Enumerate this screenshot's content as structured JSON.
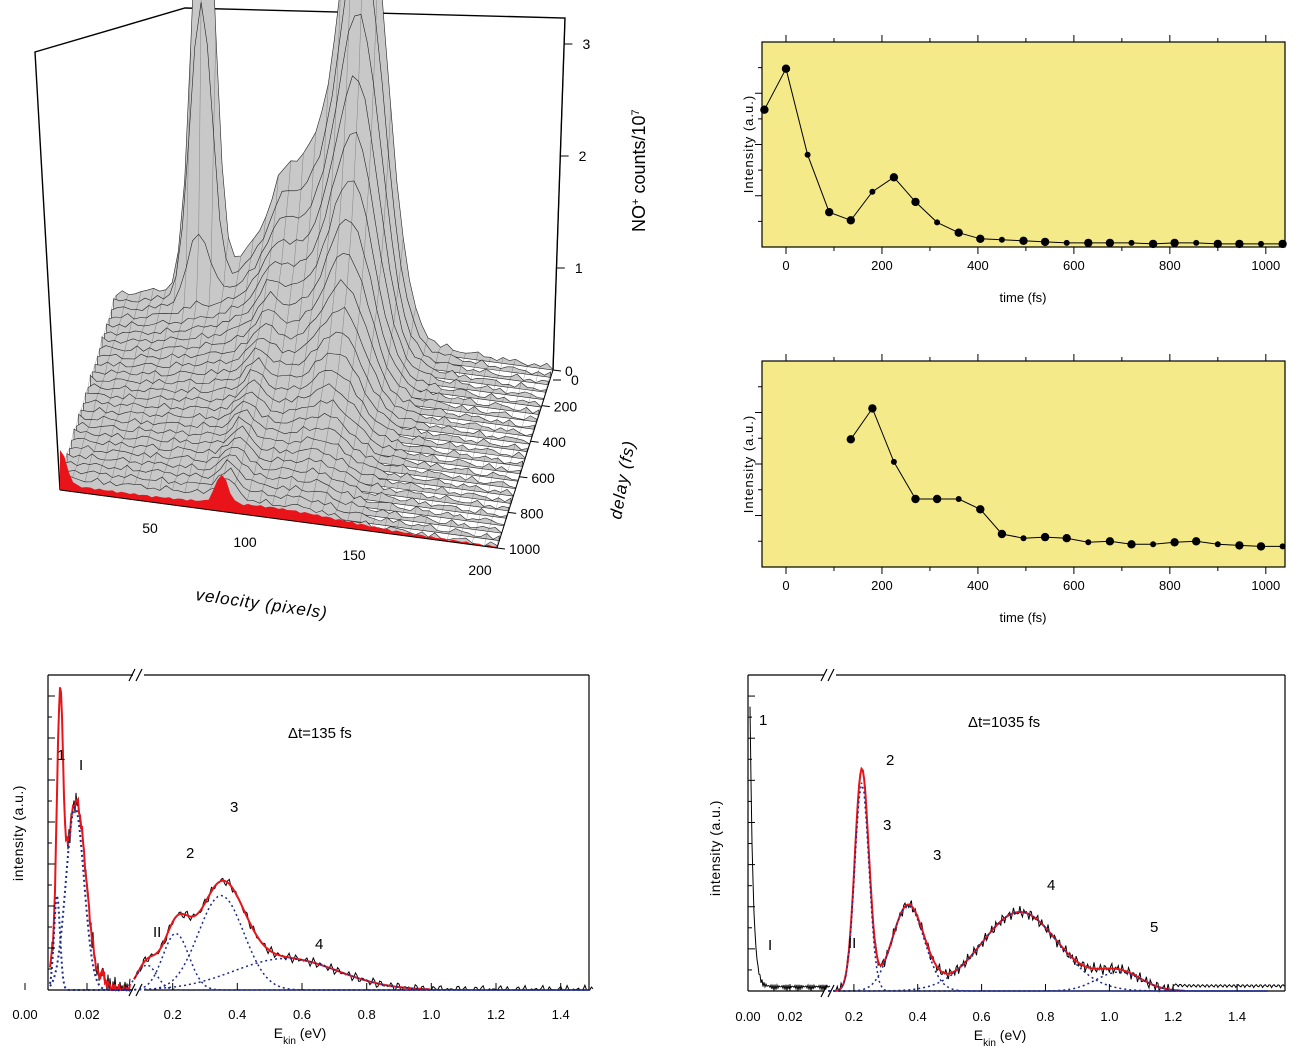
{
  "chart_data": [
    {
      "id": "surface-3d",
      "type": "surface",
      "xlabel": "velocity (pixels)",
      "ylabel": "delay (fs)",
      "zlabel_main": "NO",
      "zlabel_sup": "+",
      "zlabel_rest": " counts/10",
      "zlabel_exp": "7",
      "x_ticks": [
        "50",
        "100",
        "150",
        "200"
      ],
      "y_ticks": [
        "0",
        "200",
        "400",
        "600",
        "800",
        "1000"
      ],
      "z_ticks": [
        "0",
        "1",
        "2",
        "3"
      ],
      "colors": {
        "surface": "#c8c8c8",
        "mesh": "#222222",
        "slice": "#e8141a"
      }
    },
    {
      "id": "top-right",
      "type": "line",
      "xlabel": "time (fs)",
      "ylabel": "Intensity (a.u.)",
      "xlim": [
        -50,
        1040
      ],
      "ylim": [
        0,
        1.0
      ],
      "x_ticks": [
        0,
        200,
        400,
        600,
        800,
        1000
      ],
      "background": "#f5ea8a",
      "series": [
        {
          "x": [
            -45,
            0,
            45,
            90,
            135,
            180,
            225,
            270,
            315,
            360,
            405,
            450,
            495,
            540,
            585,
            630,
            675,
            720,
            765,
            810,
            855,
            900,
            945,
            990,
            1035
          ],
          "y": [
            0.67,
            0.87,
            0.45,
            0.17,
            0.13,
            0.27,
            0.34,
            0.22,
            0.12,
            0.07,
            0.04,
            0.035,
            0.03,
            0.025,
            0.02,
            0.02,
            0.02,
            0.02,
            0.015,
            0.02,
            0.02,
            0.015,
            0.015,
            0.015,
            0.015
          ]
        }
      ]
    },
    {
      "id": "middle-right",
      "type": "line",
      "xlabel": "time (fs)",
      "ylabel": "Intensity (a.u.)",
      "xlim": [
        -50,
        1040
      ],
      "ylim": [
        0,
        1.0
      ],
      "x_ticks": [
        0,
        200,
        400,
        600,
        800,
        1000
      ],
      "background": "#f5ea8a",
      "series": [
        {
          "x": [
            135,
            180,
            225,
            270,
            315,
            360,
            405,
            450,
            495,
            540,
            585,
            630,
            675,
            720,
            765,
            810,
            855,
            900,
            945,
            990,
            1035
          ],
          "y": [
            0.62,
            0.77,
            0.51,
            0.33,
            0.33,
            0.33,
            0.28,
            0.16,
            0.14,
            0.145,
            0.14,
            0.12,
            0.125,
            0.11,
            0.11,
            0.12,
            0.125,
            0.11,
            0.105,
            0.1,
            0.1
          ]
        }
      ]
    },
    {
      "id": "bottom-left",
      "type": "line",
      "annotation": "Δt=135 fs",
      "xlabel_main": "E",
      "xlabel_sub": "kin",
      "xlabel_rest": " (eV)",
      "ylabel": "intensity (a.u.)",
      "x_ticks": [
        "0.00",
        "0.02",
        "0.2",
        "0.4",
        "0.6",
        "0.8",
        "1.0",
        "1.2",
        "1.4"
      ],
      "peak_labels": [
        "1",
        "I",
        "2",
        "3",
        "II",
        "4"
      ],
      "colors": {
        "measured": "#000000",
        "fit": "#e8141a",
        "components": "#1c2a8c"
      }
    },
    {
      "id": "bottom-right",
      "type": "line",
      "annotation": "Δt=1035 fs",
      "xlabel_main": "E",
      "xlabel_sub": "kin",
      "xlabel_rest": " (eV)",
      "ylabel": "intensity (a.u.)",
      "x_ticks": [
        "0.00",
        "0.02",
        "0.2",
        "0.4",
        "0.6",
        "0.8",
        "1.0",
        "1.2",
        "1.4"
      ],
      "peak_labels": [
        "1",
        "2",
        "3",
        "3",
        "4",
        "5",
        "I",
        "II"
      ],
      "colors": {
        "measured": "#000000",
        "fit": "#e8141a",
        "components": "#1c2a8c"
      }
    }
  ]
}
